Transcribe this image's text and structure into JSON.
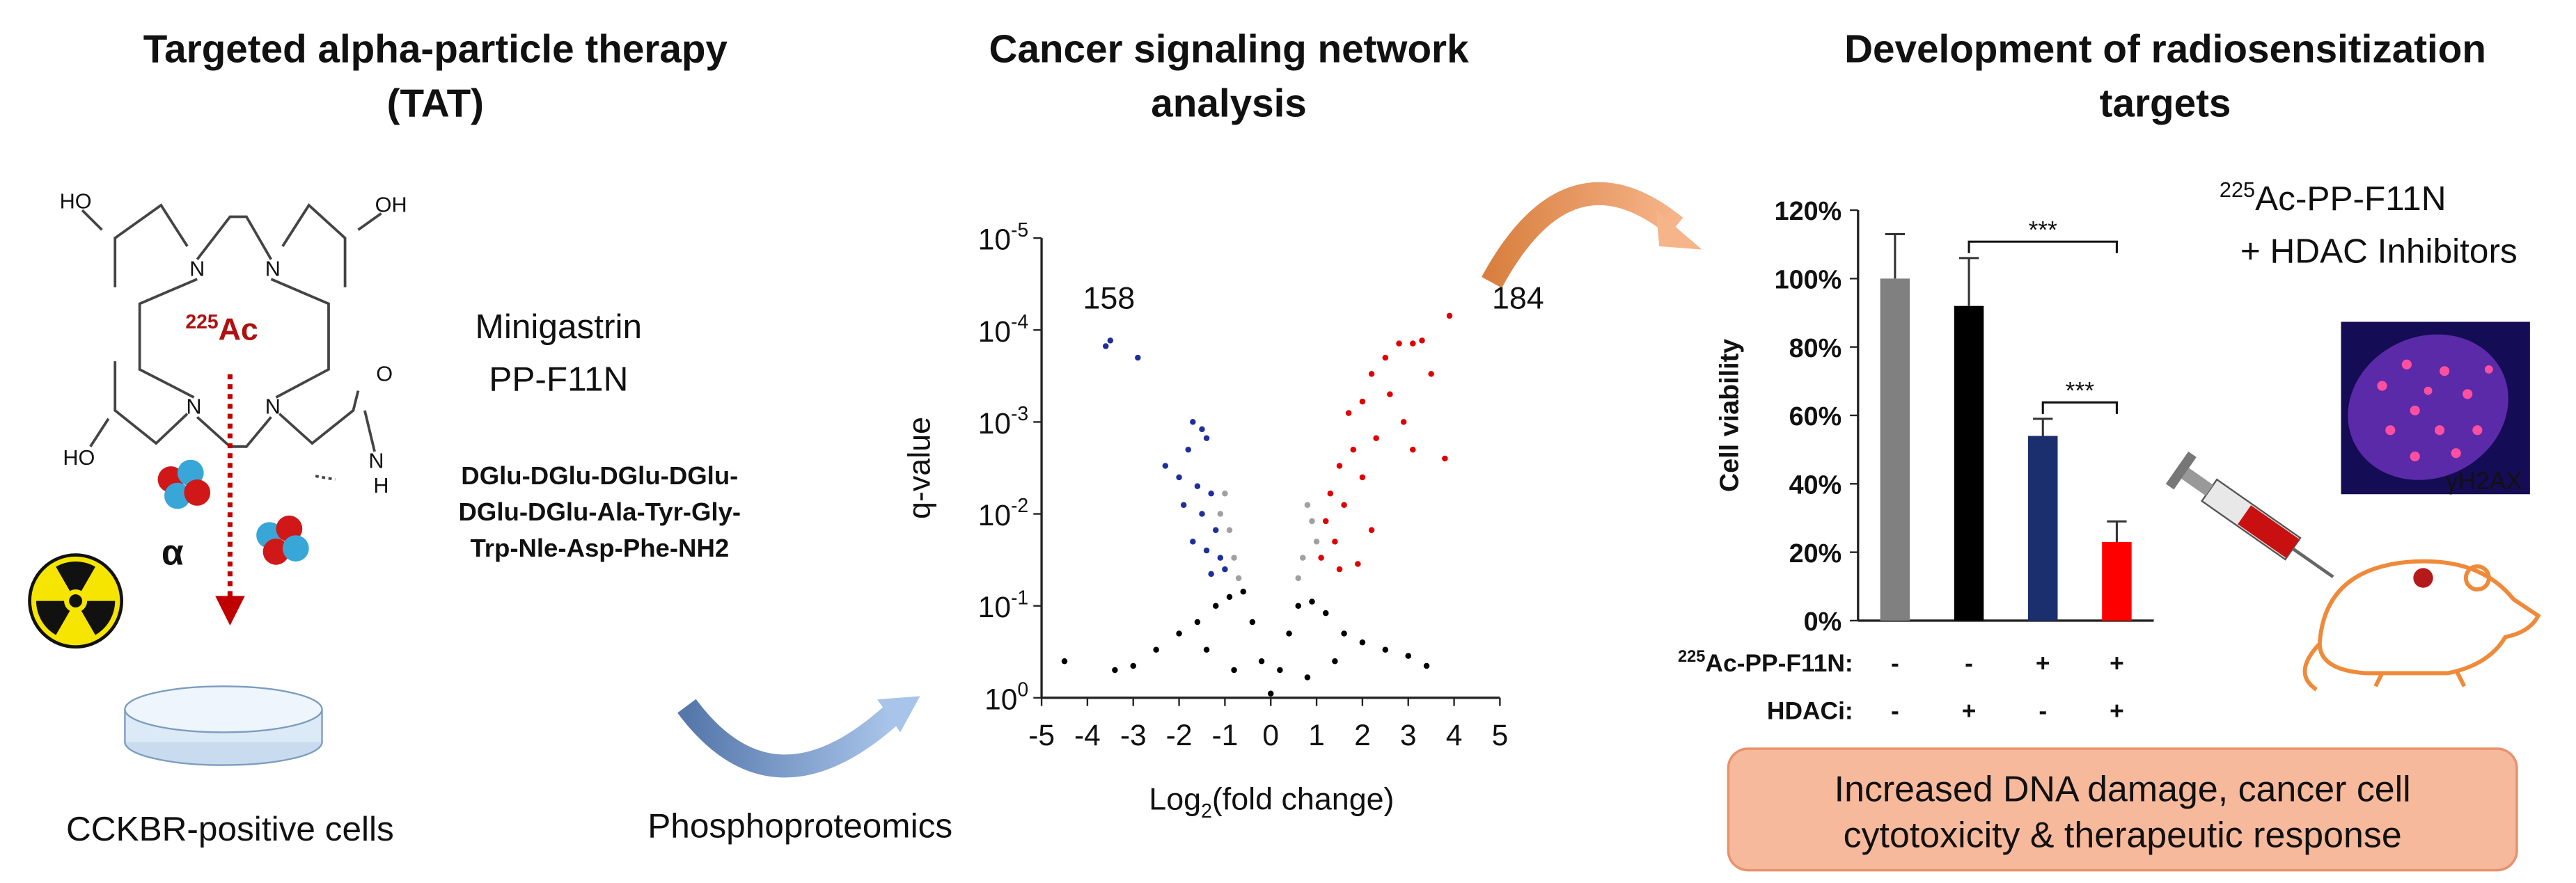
{
  "tat": {
    "title": [
      "Targeted alpha-particle therapy",
      "(TAT)"
    ],
    "atoms": [
      "HO",
      "OH",
      "HO",
      "O",
      "N",
      "H",
      "N",
      "N",
      "N",
      "N"
    ],
    "ac_isotope": "225",
    "ac_symbol": "Ac",
    "alpha": "α",
    "drug": [
      "Minigastrin",
      "PP-F11N"
    ],
    "peptide": [
      "DGlu-DGlu-DGlu-DGlu-",
      "DGlu-DGlu-Ala-Tyr-Gly-",
      "Trp-Nle-Asp-Phe-NH2"
    ],
    "cells": "CCKBR-positive cells"
  },
  "network": {
    "title": [
      "Cancer signaling network",
      "analysis"
    ],
    "method": "Phosphoproteomics"
  },
  "radiosensitization": {
    "title": [
      "Development of radiosensitization",
      "targets"
    ],
    "treatment": {
      "isotope": "225",
      "text": "Ac-PP-F11N",
      "line2": "+ HDAC Inhibitors"
    },
    "stain": "γH2AX",
    "conclusion": [
      "Increased DNA damage, cancer cell",
      "cytotoxicity & therapeutic response"
    ]
  },
  "chart_data": [
    {
      "type": "scatter",
      "x_label": [
        "Log",
        "2",
        "(fold change)"
      ],
      "y_label": "q-value",
      "xlim": [
        -5,
        5
      ],
      "xticks": [
        -5,
        -4,
        -3,
        -2,
        -1,
        0,
        1,
        2,
        3,
        4,
        5
      ],
      "ylim": [
        1,
        1e-05
      ],
      "log_y": true,
      "yticks": [
        {
          "value": 1,
          "label": "10",
          "exponent": "0"
        },
        {
          "value": 0.1,
          "label": "10",
          "exponent": "-1"
        },
        {
          "value": 0.01,
          "label": "10",
          "exponent": "-2"
        },
        {
          "value": 0.001,
          "label": "10",
          "exponent": "-3"
        },
        {
          "value": 0.0001,
          "label": "10",
          "exponent": "-4"
        },
        {
          "value": 1e-05,
          "label": "10",
          "exponent": "-5"
        }
      ],
      "annotations": [
        {
          "text": "158",
          "color": "#1a237e"
        },
        {
          "text": "184",
          "color": "#d40000"
        }
      ],
      "series": [
        {
          "color": "#000000",
          "x": [
            -4.5,
            -3.4,
            -3.0,
            -2.5,
            -2.0,
            -1.6,
            -1.4,
            -1.2,
            -0.9,
            -0.8,
            -0.6,
            -0.4,
            -0.2,
            0,
            0.2,
            0.4,
            0.6,
            0.8,
            0.9,
            1.2,
            1.4,
            1.6,
            2.0,
            2.5,
            3.0,
            3.4
          ],
          "values": [
            0.4,
            0.5,
            0.45,
            0.3,
            0.2,
            0.15,
            0.3,
            0.1,
            0.08,
            0.5,
            0.07,
            0.15,
            0.4,
            0.9,
            0.5,
            0.2,
            0.1,
            0.6,
            0.09,
            0.12,
            0.4,
            0.2,
            0.25,
            0.3,
            0.35,
            0.45
          ]
        },
        {
          "color": "#a0a0a0",
          "x": [
            -1.1,
            -1.0,
            -0.9,
            -0.8,
            -0.7,
            0.6,
            0.7,
            0.8,
            0.9,
            1.0
          ],
          "values": [
            0.01,
            0.006,
            0.015,
            0.03,
            0.05,
            0.05,
            0.03,
            0.008,
            0.012,
            0.02
          ]
        },
        {
          "color": "#1f2f9a",
          "x": [
            -3.6,
            -3.5,
            -2.9,
            -2.3,
            -2.0,
            -1.9,
            -1.8,
            -1.7,
            -1.7,
            -1.6,
            -1.5,
            -1.5,
            -1.4,
            -1.4,
            -1.3,
            -1.3,
            -1.2,
            -1.1,
            -1.0
          ],
          "values": [
            0.00015,
            0.00013,
            0.0002,
            0.003,
            0.004,
            0.008,
            0.002,
            0.001,
            0.02,
            0.005,
            0.0012,
            0.01,
            0.0015,
            0.025,
            0.006,
            0.045,
            0.015,
            0.03,
            0.04
          ]
        },
        {
          "color": "#e00000",
          "x": [
            3.9,
            3.3,
            3.1,
            2.8,
            2.5,
            3.5,
            2.2,
            2.6,
            2.0,
            1.7,
            2.9,
            3.1,
            2.3,
            1.8,
            1.5,
            2.0,
            1.3,
            1.6,
            3.8,
            1.2,
            2.2,
            1.4,
            1.1,
            1.9,
            1.5
          ],
          "values": [
            7e-05,
            0.00013,
            0.00014,
            0.00014,
            0.0002,
            0.0003,
            0.0003,
            0.0005,
            0.0006,
            0.0008,
            0.001,
            0.002,
            0.0015,
            0.002,
            0.003,
            0.004,
            0.006,
            0.008,
            0.0025,
            0.012,
            0.015,
            0.02,
            0.03,
            0.035,
            0.04
          ]
        }
      ]
    },
    {
      "type": "bar",
      "categories": [
        null,
        null,
        null,
        null
      ],
      "values": [
        100,
        92,
        54,
        23
      ],
      "errors": [
        13,
        14,
        5,
        6
      ],
      "colors": [
        "#808080",
        "#000000",
        "#1b2f6e",
        "#ff0000"
      ],
      "ylim": [
        0,
        120
      ],
      "yticks": [
        {
          "value": 0,
          "label": "0%"
        },
        {
          "value": 20,
          "label": "20%"
        },
        {
          "value": 40,
          "label": "40%"
        },
        {
          "value": 60,
          "label": "60%"
        },
        {
          "value": 80,
          "label": "80%"
        },
        {
          "value": 100,
          "label": "100%"
        },
        {
          "value": 120,
          "label": "120%"
        }
      ],
      "y_label": "Cell viability",
      "significance": [
        {
          "from": 1,
          "to": 3,
          "label": "***"
        },
        {
          "from": 2,
          "to": 3,
          "label": "***"
        }
      ],
      "treatments": [
        {
          "isotope": "225",
          "label": "Ac-PP-F11N:",
          "signs": [
            "-",
            "-",
            "+",
            "+"
          ]
        },
        {
          "label": "HDACi:",
          "signs": [
            "-",
            "+",
            "-",
            "+"
          ]
        }
      ]
    }
  ]
}
